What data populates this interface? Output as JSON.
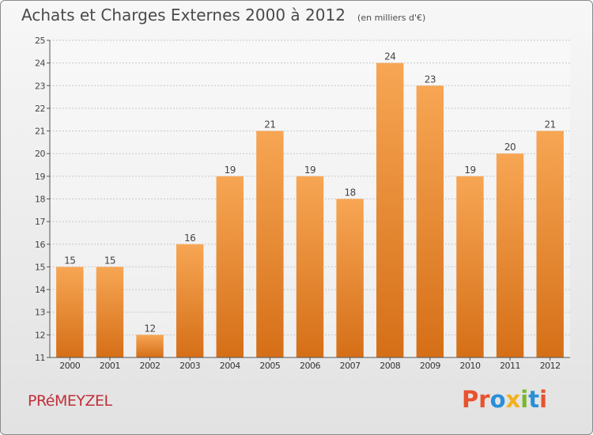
{
  "page": {
    "title": "Achats et Charges Externes 2000 à 2012",
    "subtitle": "(en milliers d'€)",
    "place": "PRéMEYZEL",
    "brand": "Proxiti",
    "brand_colors": [
      "#e8522e",
      "#e8522e",
      "#2a8fd8",
      "#f2b21b",
      "#7ab72e",
      "#2a8fd8",
      "#e8522e"
    ]
  },
  "colors": {
    "bar_top": "#f7a654",
    "bar_bottom": "#d56f17",
    "grid": "#c8c8c8",
    "text": "#444444",
    "place": "#c0303a"
  },
  "chart_data": {
    "type": "bar",
    "title": "Achats et Charges Externes 2000 à 2012",
    "subtitle": "(en milliers d'€)",
    "categories": [
      "2000",
      "2001",
      "2002",
      "2003",
      "2004",
      "2005",
      "2006",
      "2007",
      "2008",
      "2009",
      "2010",
      "2011",
      "2012"
    ],
    "values": [
      15,
      15,
      12,
      16,
      19,
      21,
      19,
      18,
      24,
      23,
      19,
      20,
      21
    ],
    "ylim": [
      11,
      25
    ],
    "yticks": [
      11,
      12,
      13,
      14,
      15,
      16,
      17,
      18,
      19,
      20,
      21,
      22,
      23,
      24,
      25
    ],
    "grid": true,
    "data_labels": true
  }
}
